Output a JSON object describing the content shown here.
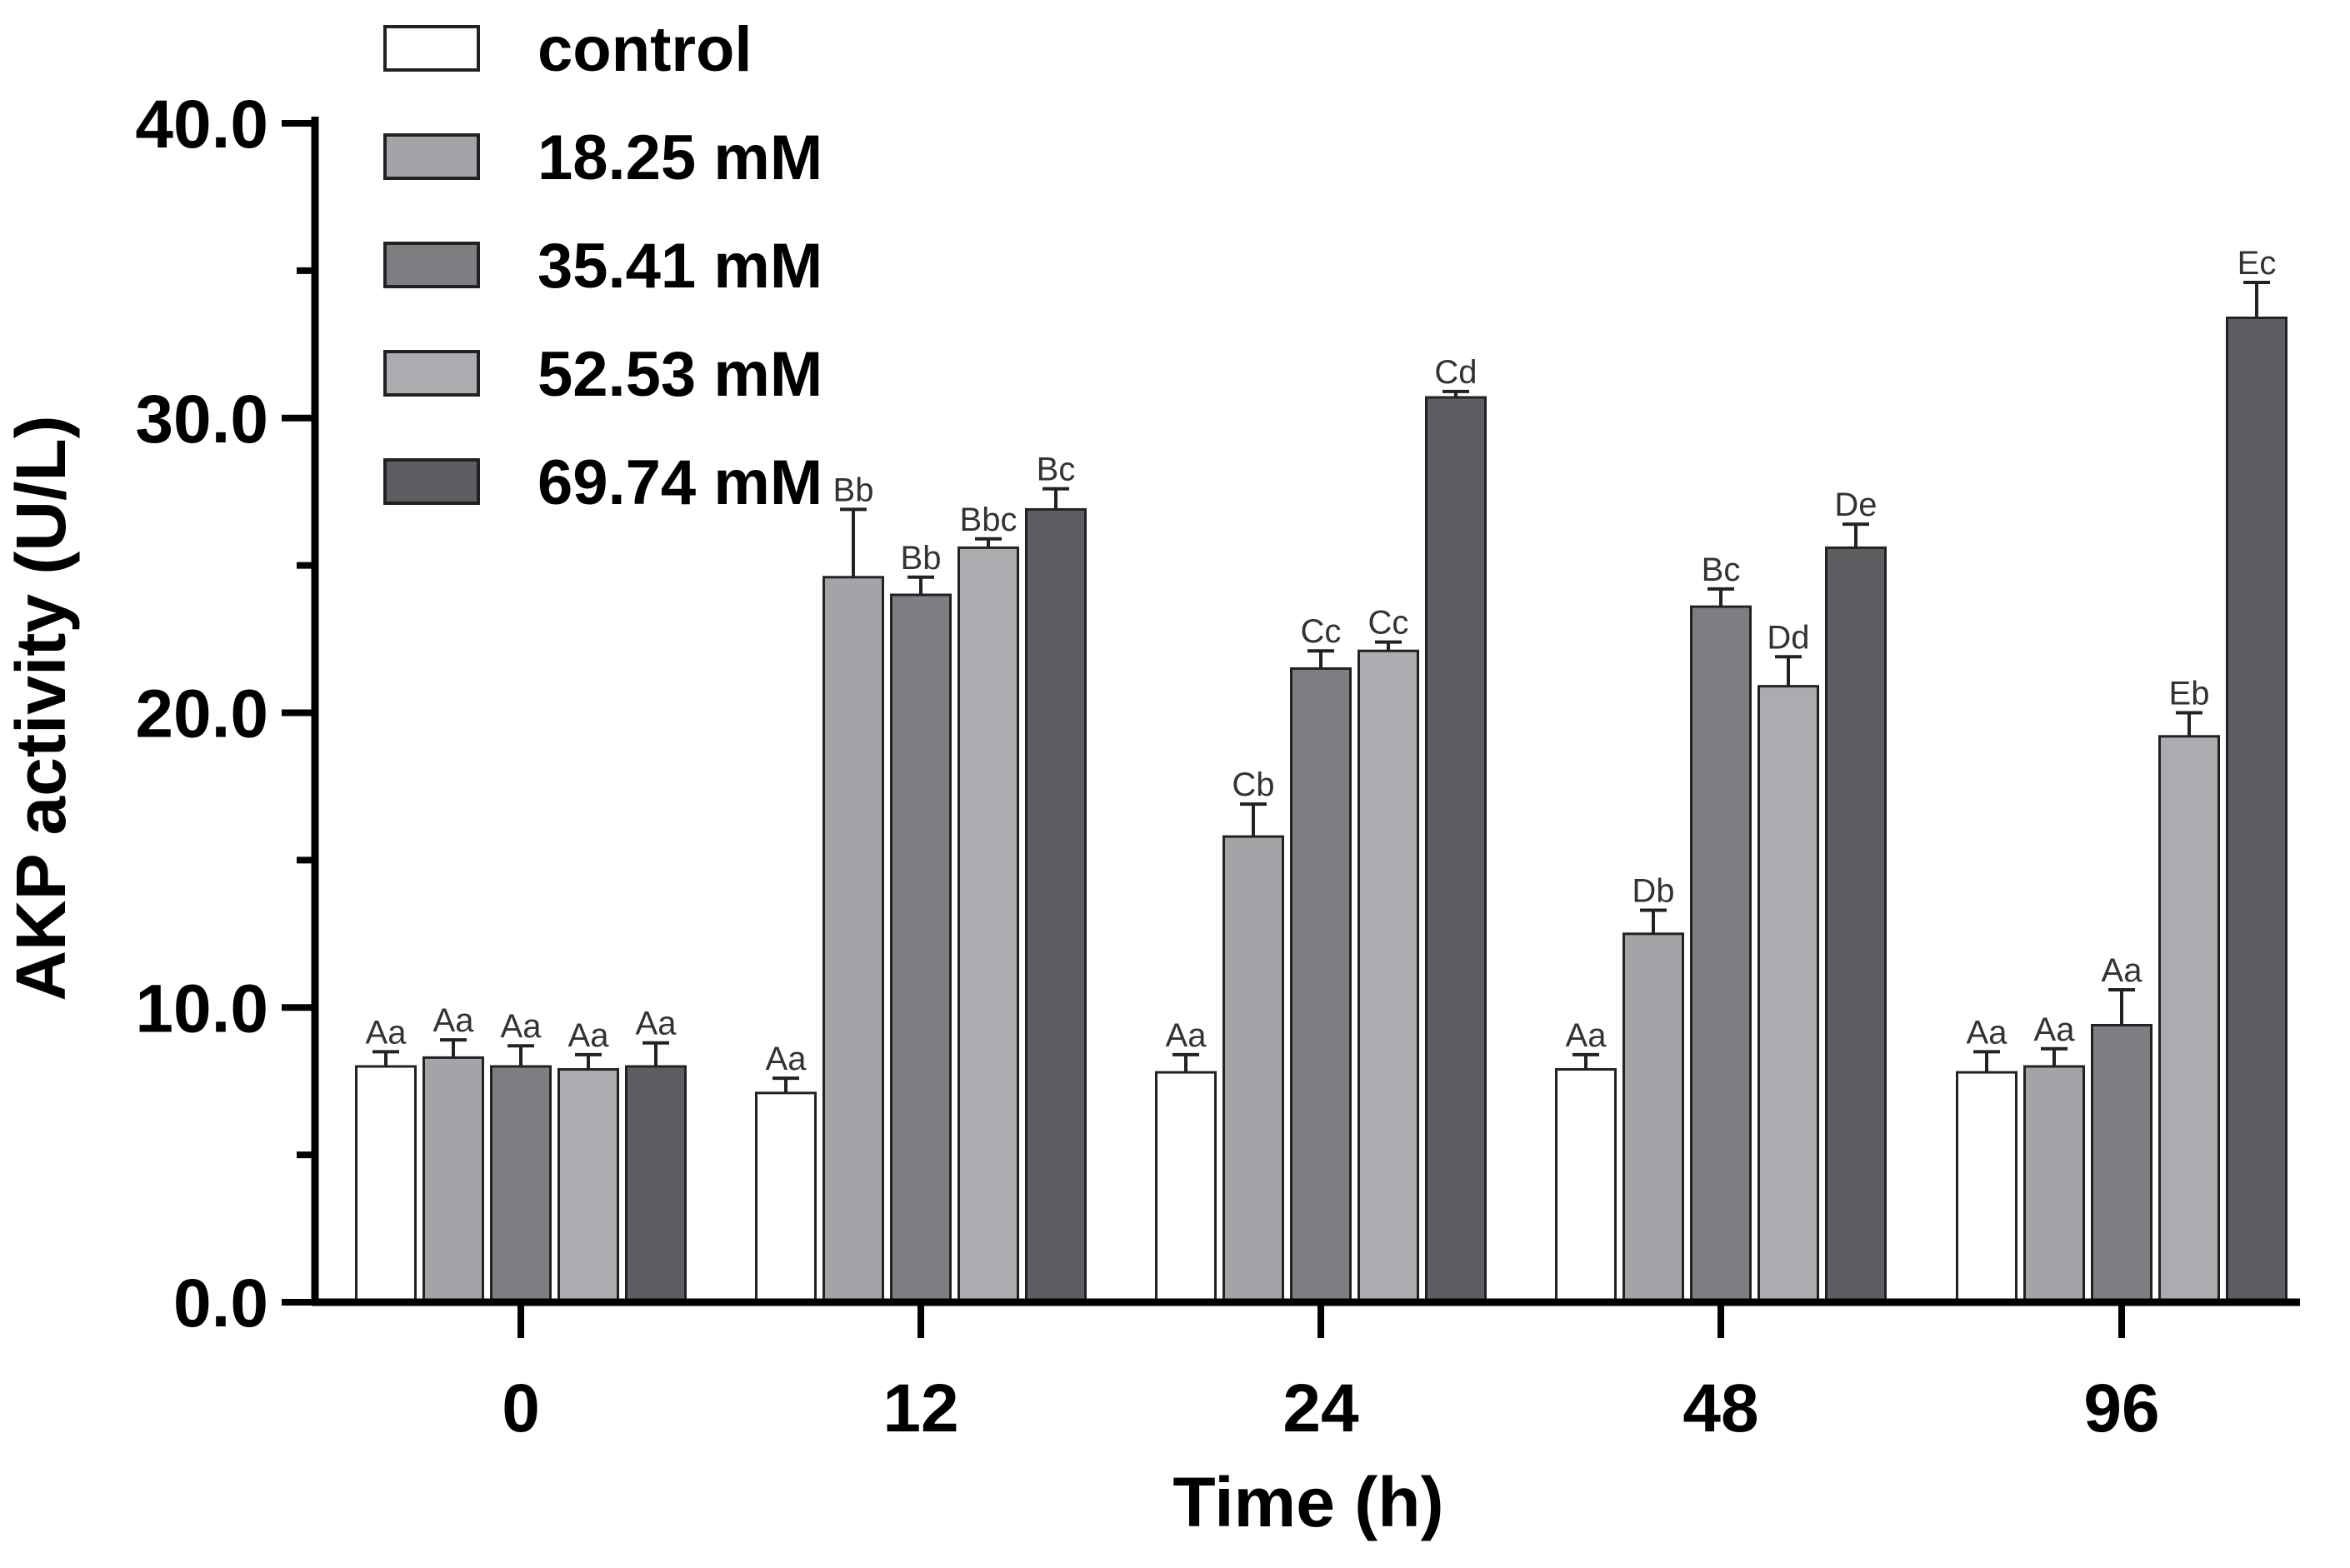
{
  "chart_data": {
    "type": "bar",
    "title": "",
    "xlabel": "Time (h)",
    "ylabel": "AKP activity (U/L)",
    "ylim": [
      0,
      40
    ],
    "yticks": [
      "0.0",
      "10.0",
      "20.0",
      "30.0",
      "40.0"
    ],
    "grid": false,
    "legend_position": "top-left",
    "categories": [
      "0",
      "12",
      "24",
      "48",
      "96"
    ],
    "series": [
      {
        "name": "control",
        "color": "#ffffff",
        "values": [
          8.0,
          7.1,
          7.8,
          7.9,
          7.8
        ],
        "errors": [
          0.5,
          0.5,
          0.6,
          0.5,
          0.7
        ],
        "labels": [
          "Aa",
          "Aa",
          "Aa",
          "Aa",
          "Aa"
        ]
      },
      {
        "name": "18.25 mM",
        "color": "#a3a3a8",
        "values": [
          8.3,
          24.6,
          15.8,
          12.5,
          8.0
        ],
        "errors": [
          0.6,
          2.3,
          1.1,
          0.8,
          0.6
        ],
        "labels": [
          "Aa",
          "Bb",
          "Cb",
          "Db",
          "Aa"
        ]
      },
      {
        "name": "35.41 mM",
        "color": "#7e7e82",
        "values": [
          8.0,
          24.0,
          21.5,
          23.6,
          9.4
        ],
        "errors": [
          0.7,
          0.6,
          0.6,
          0.6,
          1.2
        ],
        "labels": [
          "Aa",
          "Bb",
          "Cc",
          "Bc",
          "Aa"
        ]
      },
      {
        "name": "52.53 mM",
        "color": "#ababb0",
        "values": [
          7.9,
          25.6,
          22.1,
          20.9,
          19.2
        ],
        "errors": [
          0.5,
          0.3,
          0.3,
          1.0,
          0.8
        ],
        "labels": [
          "Aa",
          "Bbc",
          "Cc",
          "Dd",
          "Eb"
        ]
      },
      {
        "name": "69.74 mM",
        "color": "#5e5e62",
        "values": [
          8.0,
          26.9,
          30.7,
          25.6,
          33.4
        ],
        "errors": [
          0.8,
          0.7,
          0.2,
          0.8,
          1.2
        ],
        "labels": [
          "Aa",
          "Bc",
          "Cd",
          "De",
          "Ec"
        ]
      }
    ]
  }
}
